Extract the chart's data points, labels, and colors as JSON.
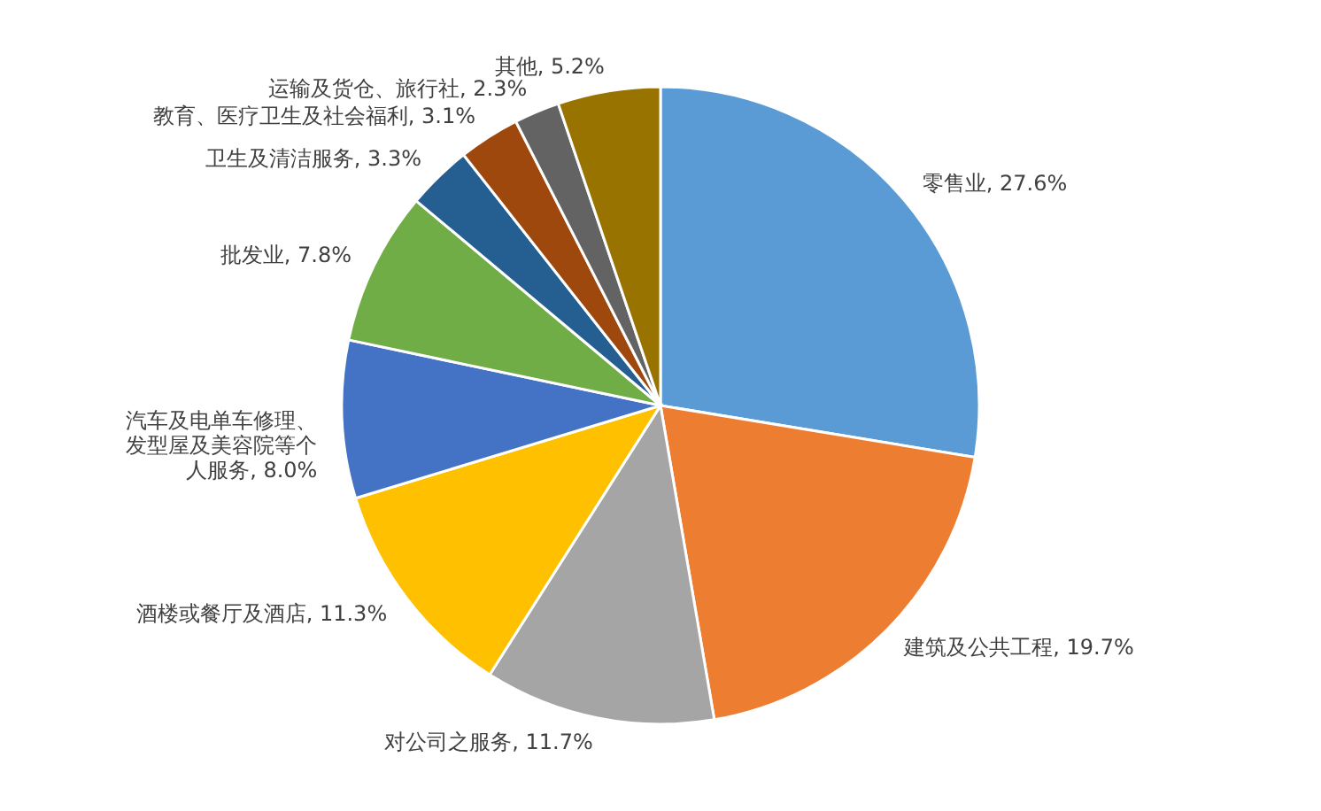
{
  "chart_data": {
    "type": "pie",
    "categories": [
      "零售业",
      "建筑及公共工程",
      "对公司之服务",
      "酒楼或餐厅及酒店",
      "汽车及电单车修理、发型屋及美容院等个人服务",
      "批发业",
      "卫生及清洁服务",
      "教育、医疗卫生及社会福利",
      "运输及货仓、旅行社",
      "其他"
    ],
    "values": [
      27.6,
      19.7,
      11.7,
      11.3,
      8.0,
      7.8,
      3.3,
      3.1,
      2.3,
      5.2
    ],
    "colors": [
      "#5b9bd5",
      "#ed7d31",
      "#a5a5a5",
      "#ffc000",
      "#4472c4",
      "#70ad47",
      "#255e91",
      "#9e480e",
      "#636363",
      "#997300"
    ],
    "value_labels": [
      "27.6%",
      "19.7%",
      "11.7%",
      "11.3%",
      "8.0%",
      "7.8%",
      "3.3%",
      "3.1%",
      "2.3%",
      "5.2%"
    ]
  }
}
